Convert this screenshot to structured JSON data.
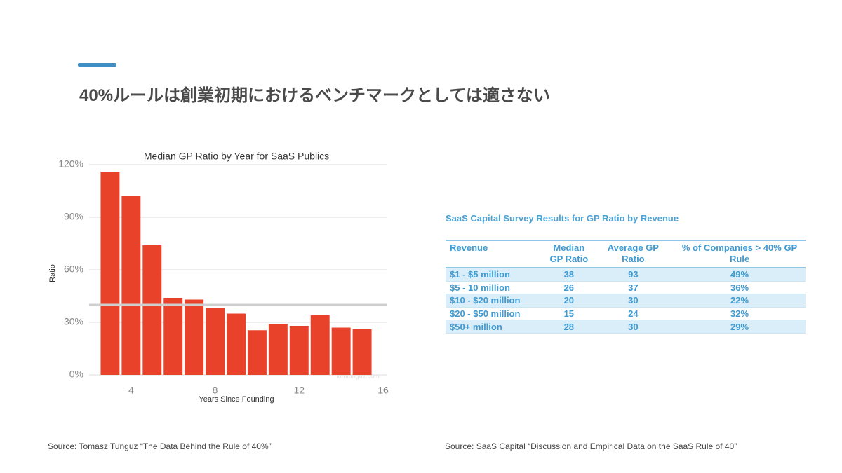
{
  "slide_title": "40%ルールは創業初期におけるベンチマークとしては適さない",
  "chart_data": {
    "type": "bar",
    "title": "Median GP Ratio by Year for SaaS Publics",
    "x_label": "Years Since Founding",
    "y_label": "Ratio",
    "watermark": "tomtunguz.com",
    "x": [
      3,
      4,
      5,
      6,
      7,
      8,
      9,
      10,
      11,
      12,
      13,
      14,
      15
    ],
    "values": [
      116,
      102,
      74,
      44,
      43,
      38,
      35,
      25.5,
      29,
      28,
      34,
      27,
      26
    ],
    "color": "#e8432a",
    "reference_line": 40,
    "reference_color": "#cfcfcf",
    "xlim": [
      2,
      16.2
    ],
    "xticks": [
      4,
      8,
      12,
      16
    ],
    "ylim": [
      0,
      120
    ],
    "yticks": [
      {
        "value": 0,
        "label": "0%"
      },
      {
        "value": 30,
        "label": "30%"
      },
      {
        "value": 60,
        "label": "60%"
      },
      {
        "value": 90,
        "label": "90%"
      },
      {
        "value": 120,
        "label": "120%"
      }
    ],
    "grid": true
  },
  "table": {
    "title": "SaaS Capital Survey Results for GP Ratio by Revenue",
    "header": [
      "Revenue",
      "Median GP Ratio",
      "Average GP Ratio",
      "% of Companies > 40% GP Rule"
    ],
    "rows": [
      [
        "$1 - $5 million",
        "38",
        "93",
        "49%"
      ],
      [
        "$5 - 10 million",
        "26",
        "37",
        "36%"
      ],
      [
        "$10 - $20 million",
        "20",
        "30",
        "22%"
      ],
      [
        "$20 - $50 million",
        "15",
        "24",
        "32%"
      ],
      [
        "$50+ million",
        "28",
        "30",
        "29%"
      ]
    ]
  },
  "sources": [
    "Source: Tomasz Tunguz “The Data Behind the Rule of 40%”",
    "Source: SaaS Capital “Discussion and Empirical Data on the SaaS Rule of 40”"
  ]
}
